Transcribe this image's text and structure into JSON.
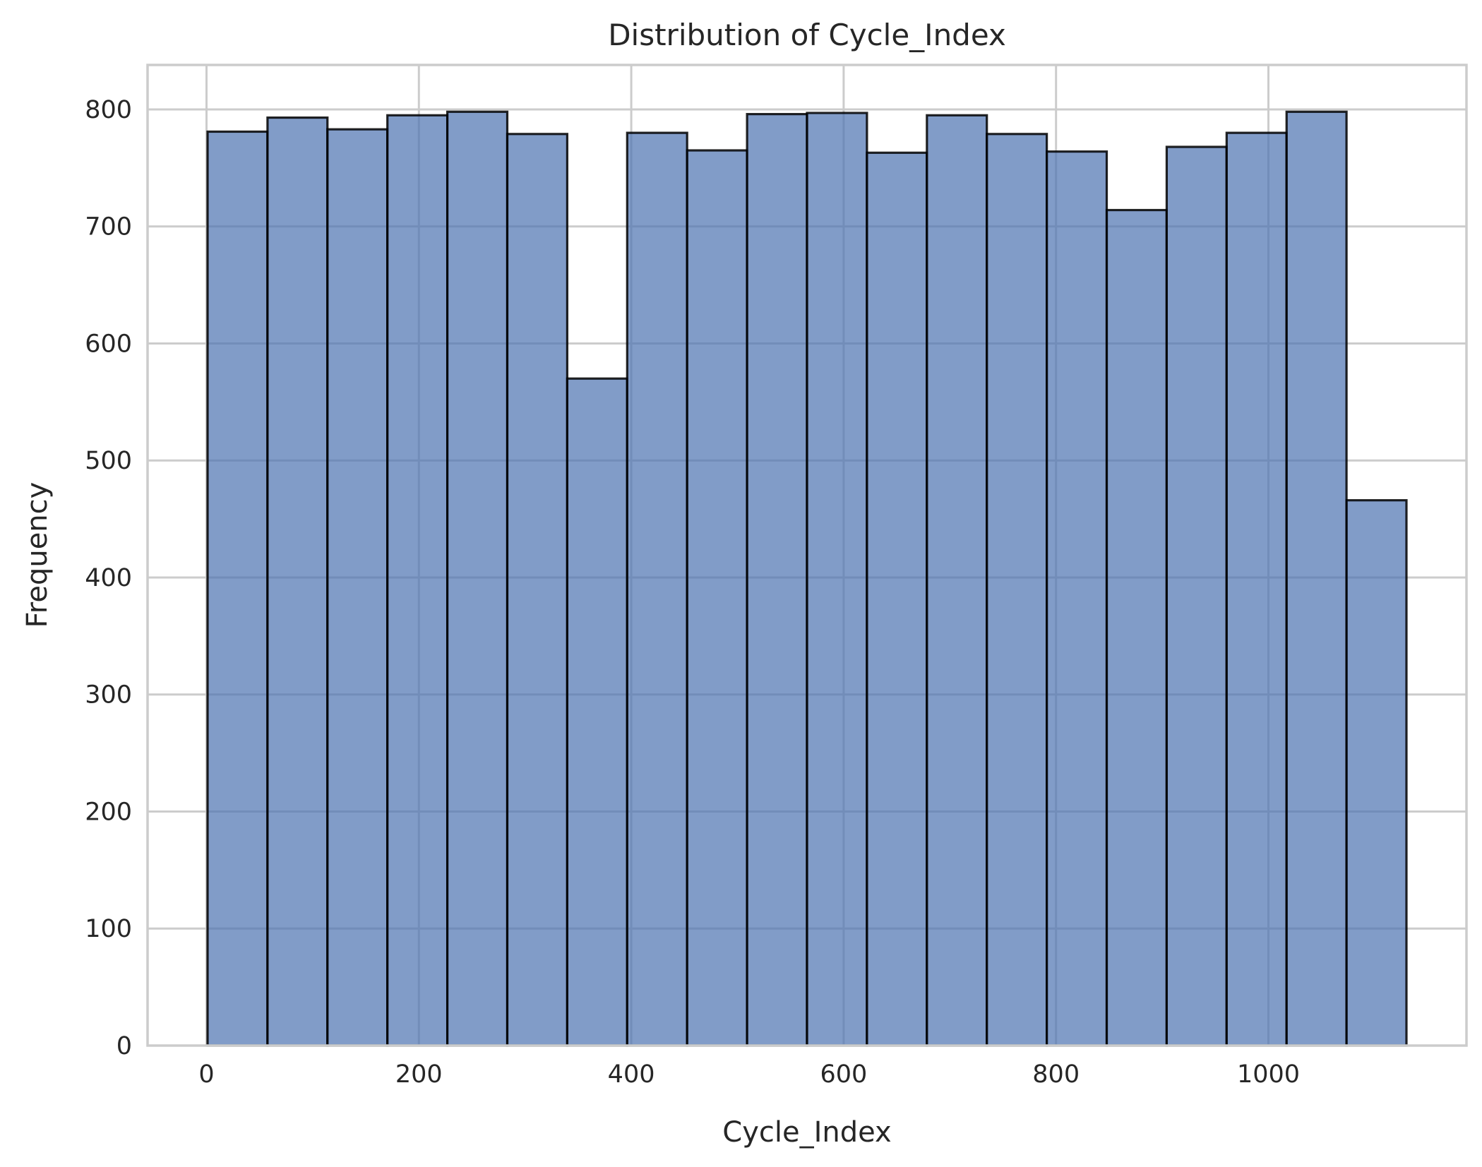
{
  "chart_data": {
    "type": "bar",
    "title": "Distribution of Cycle_Index",
    "xlabel": "Cycle_Index",
    "ylabel": "Frequency",
    "bin_edges": [
      1,
      57.45,
      113.9,
      170.35,
      226.8,
      283.25,
      339.7,
      396.15,
      452.6,
      509.05,
      565.5,
      621.95,
      678.4,
      734.85,
      791.3,
      847.75,
      904.2,
      960.65,
      1017.1,
      1073.55,
      1130
    ],
    "values": [
      781,
      793,
      783,
      795,
      798,
      779,
      570,
      780,
      765,
      796,
      797,
      763,
      795,
      779,
      764,
      714,
      768,
      780,
      798,
      466
    ],
    "xlim": [
      -55.5,
      1186.5
    ],
    "ylim": [
      0,
      838
    ],
    "x_ticks": [
      0,
      200,
      400,
      600,
      800,
      1000
    ],
    "x_tick_labels": [
      "0",
      "200",
      "400",
      "600",
      "800",
      "1000"
    ],
    "y_ticks": [
      0,
      100,
      200,
      300,
      400,
      500,
      600,
      700,
      800
    ],
    "y_tick_labels": [
      "0",
      "100",
      "200",
      "300",
      "400",
      "500",
      "600",
      "700",
      "800"
    ],
    "grid": true,
    "colors": {
      "bar_fill": "#4c72b0",
      "bar_fill_opacity": 0.7,
      "bar_edge": "#000000",
      "grid": "#cccccc",
      "text": "#262626"
    }
  }
}
